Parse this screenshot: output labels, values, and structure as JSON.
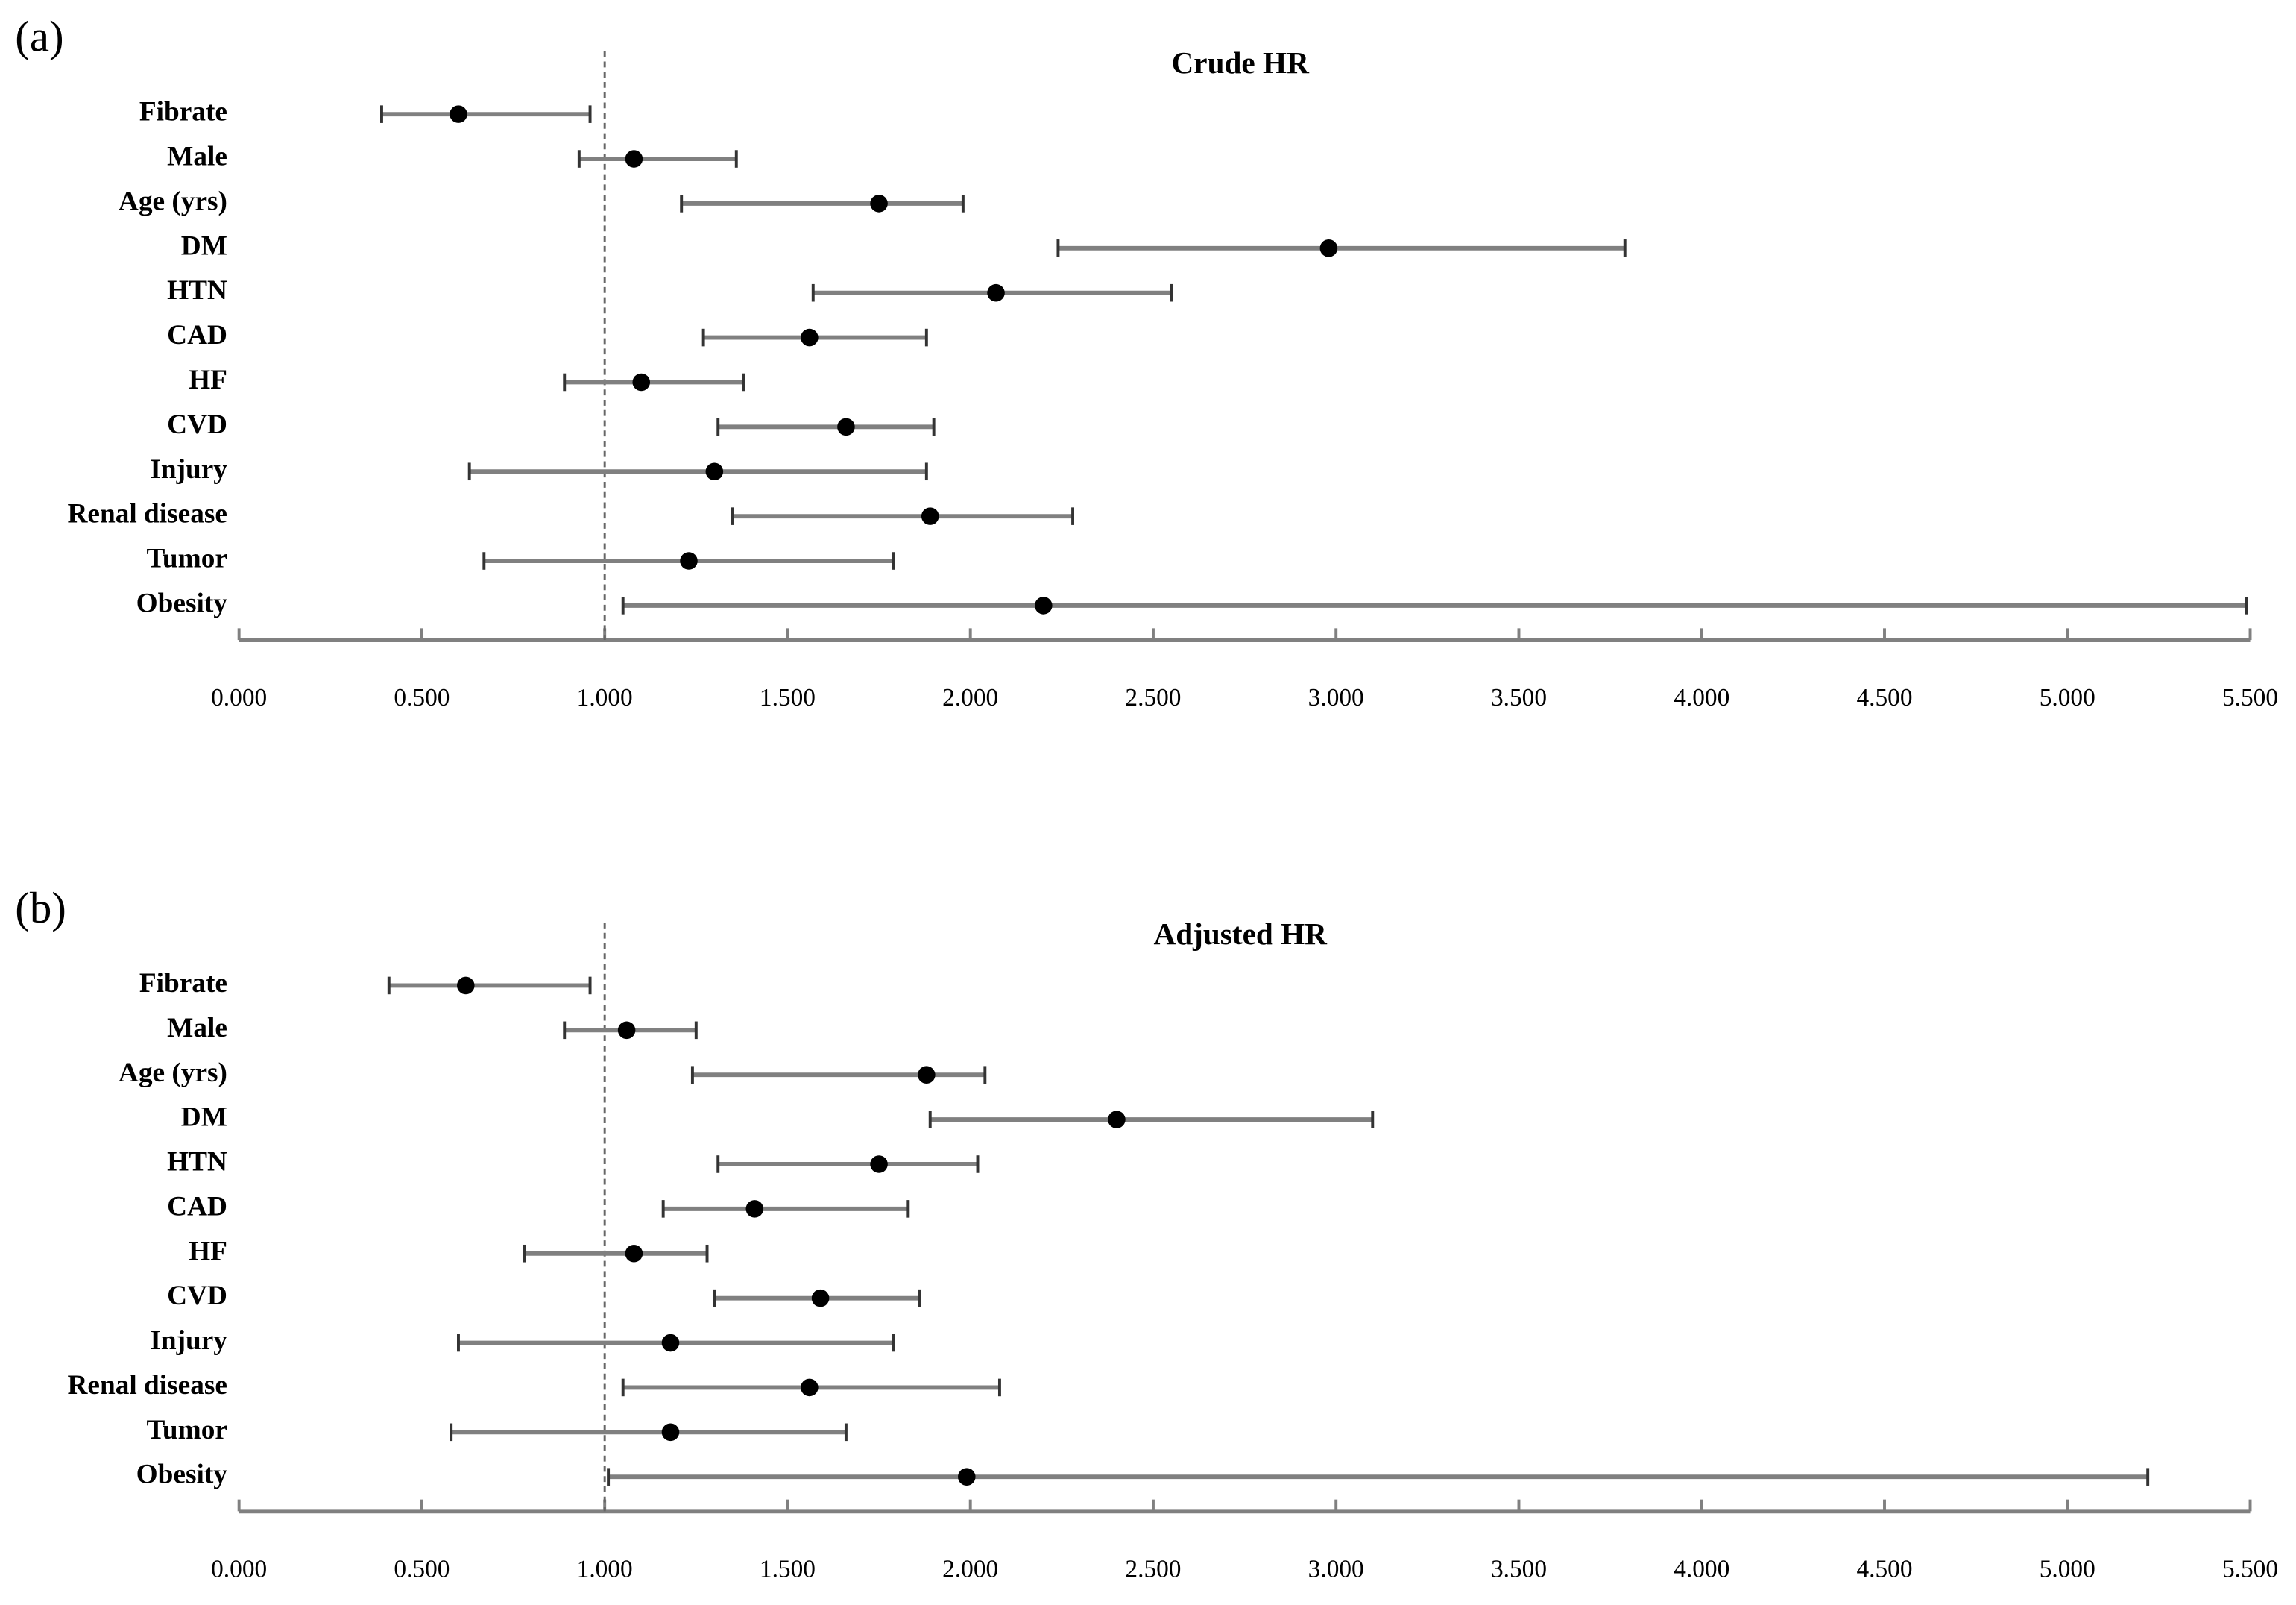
{
  "chart_data": [
    {
      "type": "forest",
      "panel_label": "(a)",
      "title": "Crude HR",
      "categories": [
        "Fibrate",
        "Male",
        "Age (yrs)",
        "DM",
        "HTN",
        "CAD",
        "HF",
        "CVD",
        "Injury",
        "Renal disease",
        "Tumor",
        "Obesity"
      ],
      "values": [
        0.6,
        1.08,
        1.75,
        2.98,
        2.07,
        1.56,
        1.1,
        1.66,
        1.3,
        1.89,
        1.23,
        2.2
      ],
      "lower": [
        0.39,
        0.93,
        1.21,
        2.24,
        1.57,
        1.27,
        0.89,
        1.31,
        0.63,
        1.35,
        0.67,
        1.05
      ],
      "upper": [
        0.96,
        1.36,
        1.98,
        3.79,
        2.55,
        1.88,
        1.38,
        1.9,
        1.88,
        2.28,
        1.79,
        5.49
      ],
      "xlim": [
        0,
        5.5
      ],
      "xticks": [
        {
          "value": 0,
          "label": "0.000"
        },
        {
          "value": 0.5,
          "label": "0.500"
        },
        {
          "value": 1,
          "label": "1.000"
        },
        {
          "value": 1.5,
          "label": "1.500"
        },
        {
          "value": 2,
          "label": "2.000"
        },
        {
          "value": 2.5,
          "label": "2.500"
        },
        {
          "value": 3,
          "label": "3.000"
        },
        {
          "value": 3.5,
          "label": "3.500"
        },
        {
          "value": 4,
          "label": "4.000"
        },
        {
          "value": 4.5,
          "label": "4.500"
        },
        {
          "value": 5,
          "label": "5.000"
        },
        {
          "value": 5.5,
          "label": "5.500"
        }
      ],
      "reference_line": 1,
      "color": "#000000",
      "ci_color": "#808080"
    },
    {
      "type": "forest",
      "panel_label": "(b)",
      "title": "Adjusted HR",
      "categories": [
        "Fibrate",
        "Male",
        "Age (yrs)",
        "DM",
        "HTN",
        "CAD",
        "HF",
        "CVD",
        "Injury",
        "Renal disease",
        "Tumor",
        "Obesity"
      ],
      "values": [
        0.62,
        1.06,
        1.88,
        2.4,
        1.75,
        1.41,
        1.08,
        1.59,
        1.18,
        1.56,
        1.18,
        1.99
      ],
      "lower": [
        0.41,
        0.89,
        1.24,
        1.89,
        1.31,
        1.16,
        0.78,
        1.3,
        0.6,
        1.05,
        0.58,
        1.01
      ],
      "upper": [
        0.96,
        1.25,
        2.04,
        3.1,
        2.02,
        1.83,
        1.28,
        1.86,
        1.79,
        2.08,
        1.66,
        5.22
      ],
      "xlim": [
        0,
        5.5
      ],
      "xticks": [
        {
          "value": 0,
          "label": "0.000"
        },
        {
          "value": 0.5,
          "label": "0.500"
        },
        {
          "value": 1,
          "label": "1.000"
        },
        {
          "value": 1.5,
          "label": "1.500"
        },
        {
          "value": 2,
          "label": "2.000"
        },
        {
          "value": 2.5,
          "label": "2.500"
        },
        {
          "value": 3,
          "label": "3.000"
        },
        {
          "value": 3.5,
          "label": "3.500"
        },
        {
          "value": 4,
          "label": "4.000"
        },
        {
          "value": 4.5,
          "label": "4.500"
        },
        {
          "value": 5,
          "label": "5.000"
        },
        {
          "value": 5.5,
          "label": "5.500"
        }
      ],
      "reference_line": 1,
      "color": "#000000",
      "ci_color": "#808080"
    }
  ]
}
